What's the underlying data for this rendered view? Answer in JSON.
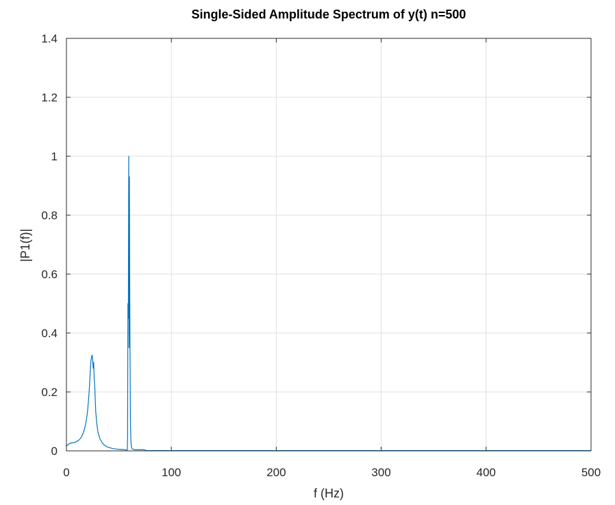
{
  "chart_data": {
    "type": "line",
    "title": "Single-Sided Amplitude Spectrum of y(t) n=500",
    "xlabel": "f (Hz)",
    "ylabel": "|P1(f)|",
    "xlim": [
      0,
      500
    ],
    "ylim": [
      0,
      1.4
    ],
    "xticks": [
      0,
      100,
      200,
      300,
      400,
      500
    ],
    "xtick_labels": [
      "0",
      "100",
      "200",
      "300",
      "400",
      "500"
    ],
    "yticks": [
      0,
      0.2,
      0.4,
      0.6,
      0.8,
      1,
      1.2,
      1.4
    ],
    "ytick_labels": [
      "0",
      "0.2",
      "0.4",
      "0.6",
      "0.8",
      "1",
      "1.2",
      "1.4"
    ],
    "grid": true,
    "series": [
      {
        "color": "#0072bd",
        "x": [
          0,
          1,
          3,
          5,
          8,
          10,
          12,
          14,
          16,
          18,
          19,
          20,
          21,
          22,
          23,
          23.5,
          24,
          24.5,
          25,
          25.5,
          26,
          26.5,
          27,
          27.5,
          28,
          29,
          30,
          32,
          34,
          36,
          38,
          40,
          44,
          48,
          52,
          55,
          57,
          58,
          58.3,
          58.6,
          59,
          59.4,
          59.7,
          60,
          60.3,
          60.6,
          61,
          61.5,
          62,
          62.5,
          63,
          64,
          65,
          67,
          70,
          73,
          75,
          76,
          80,
          100,
          200,
          300,
          400,
          500
        ],
        "y": [
          0.015,
          0.02,
          0.025,
          0.027,
          0.029,
          0.032,
          0.037,
          0.045,
          0.06,
          0.085,
          0.105,
          0.13,
          0.17,
          0.22,
          0.29,
          0.31,
          0.32,
          0.325,
          0.31,
          0.28,
          0.3,
          0.24,
          0.22,
          0.17,
          0.13,
          0.09,
          0.065,
          0.04,
          0.028,
          0.02,
          0.015,
          0.012,
          0.008,
          0.006,
          0.005,
          0.004,
          0.003,
          0.003,
          0.05,
          0.5,
          0.45,
          1.0,
          0.35,
          0.93,
          0.6,
          0.36,
          0.1,
          0.03,
          0.012,
          0.008,
          0.006,
          0.005,
          0.004,
          0.004,
          0.004,
          0.004,
          0.003,
          0.001,
          0.001,
          0.001,
          0.001,
          0.001,
          0.001,
          0.001
        ]
      }
    ]
  }
}
